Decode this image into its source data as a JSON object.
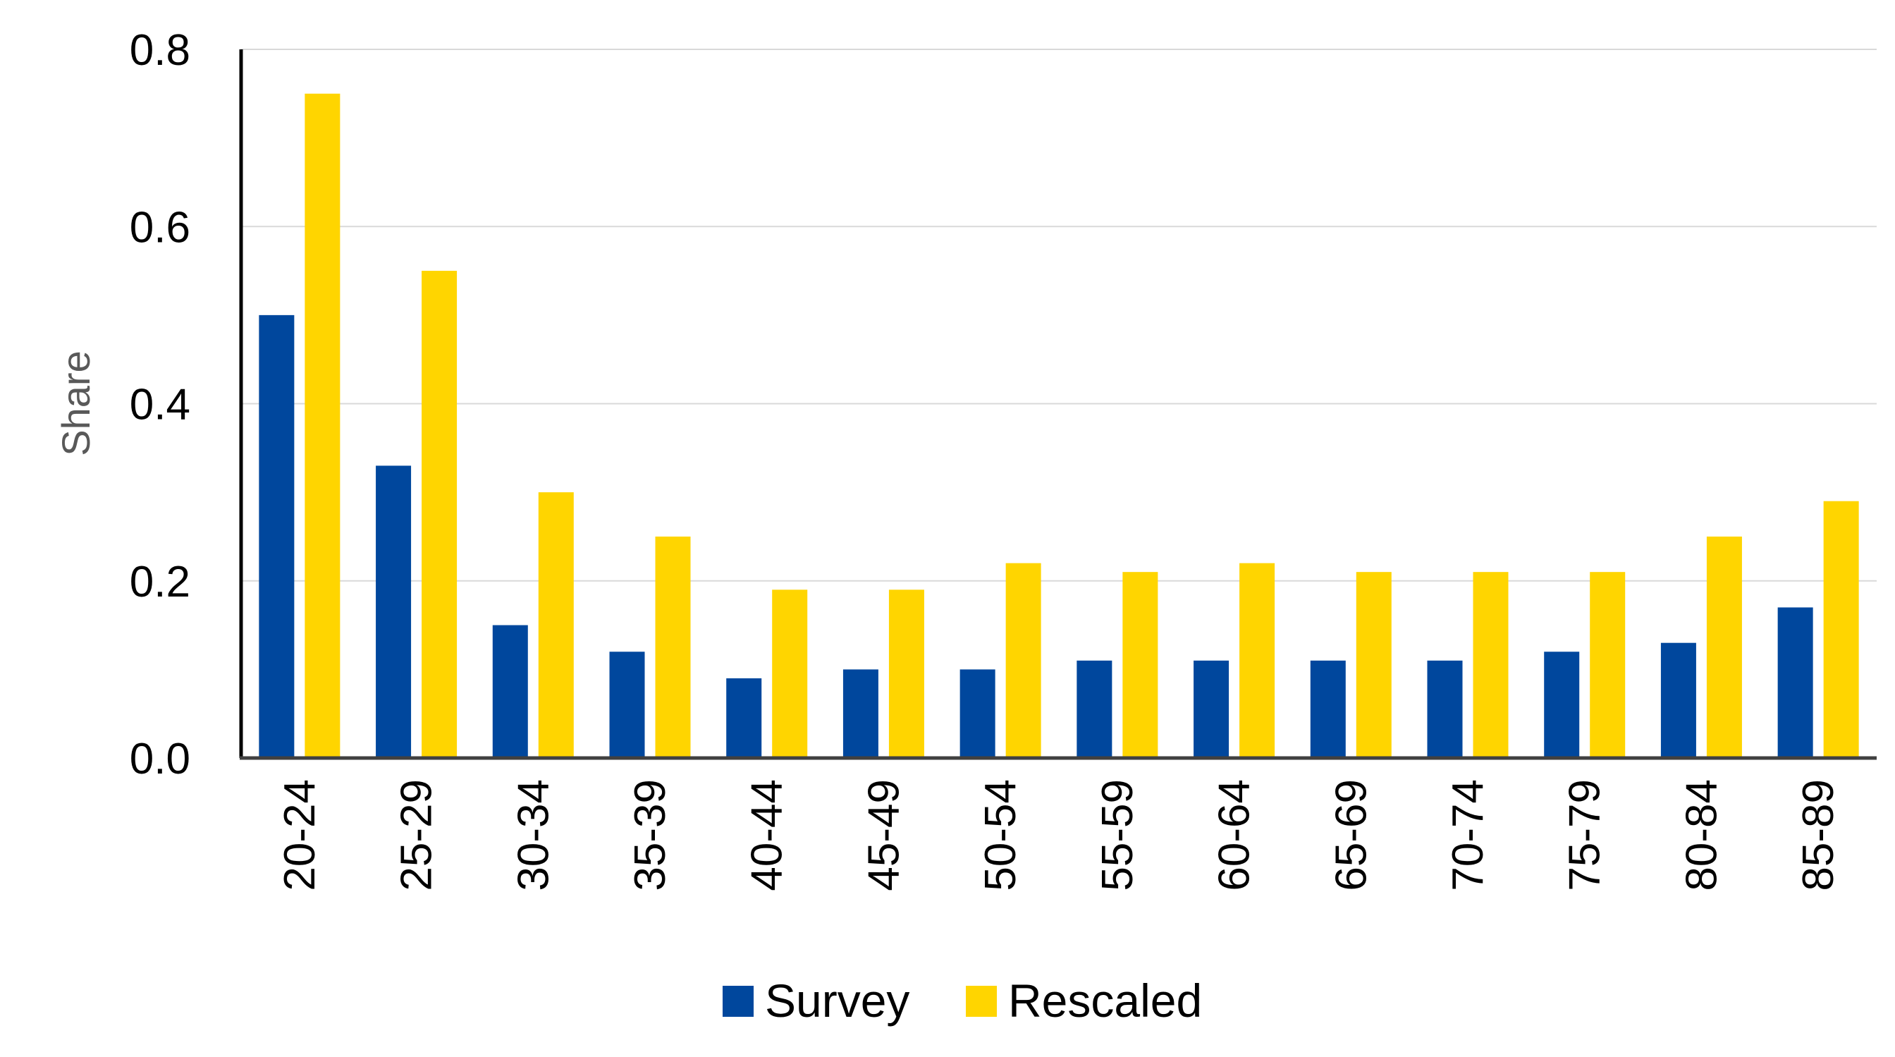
{
  "chart_data": {
    "type": "bar",
    "title": "",
    "xlabel": "",
    "ylabel": "Share",
    "ylim": [
      0,
      0.8
    ],
    "yticks": [
      "0.0",
      "0.2",
      "0.4",
      "0.6",
      "0.8"
    ],
    "ytick_values": [
      0,
      0.2,
      0.4,
      0.6,
      0.8
    ],
    "grid": true,
    "legend_position": "bottom-center",
    "categories": [
      "20-24",
      "25-29",
      "30-34",
      "35-39",
      "40-44",
      "45-49",
      "50-54",
      "55-59",
      "60-64",
      "65-69",
      "70-74",
      "75-79",
      "80-84",
      "85-89"
    ],
    "series": [
      {
        "name": "Survey",
        "color": "#00479D",
        "values": [
          0.5,
          0.33,
          0.15,
          0.12,
          0.09,
          0.1,
          0.1,
          0.11,
          0.11,
          0.11,
          0.11,
          0.12,
          0.13,
          0.17
        ]
      },
      {
        "name": "Rescaled",
        "color": "#FFD500",
        "values": [
          0.75,
          0.55,
          0.3,
          0.25,
          0.19,
          0.19,
          0.22,
          0.21,
          0.22,
          0.21,
          0.21,
          0.21,
          0.25,
          0.29
        ]
      }
    ],
    "colors": {
      "axis": "#000000",
      "grid": "#D9D9D9",
      "ylabel": "#595959"
    }
  }
}
